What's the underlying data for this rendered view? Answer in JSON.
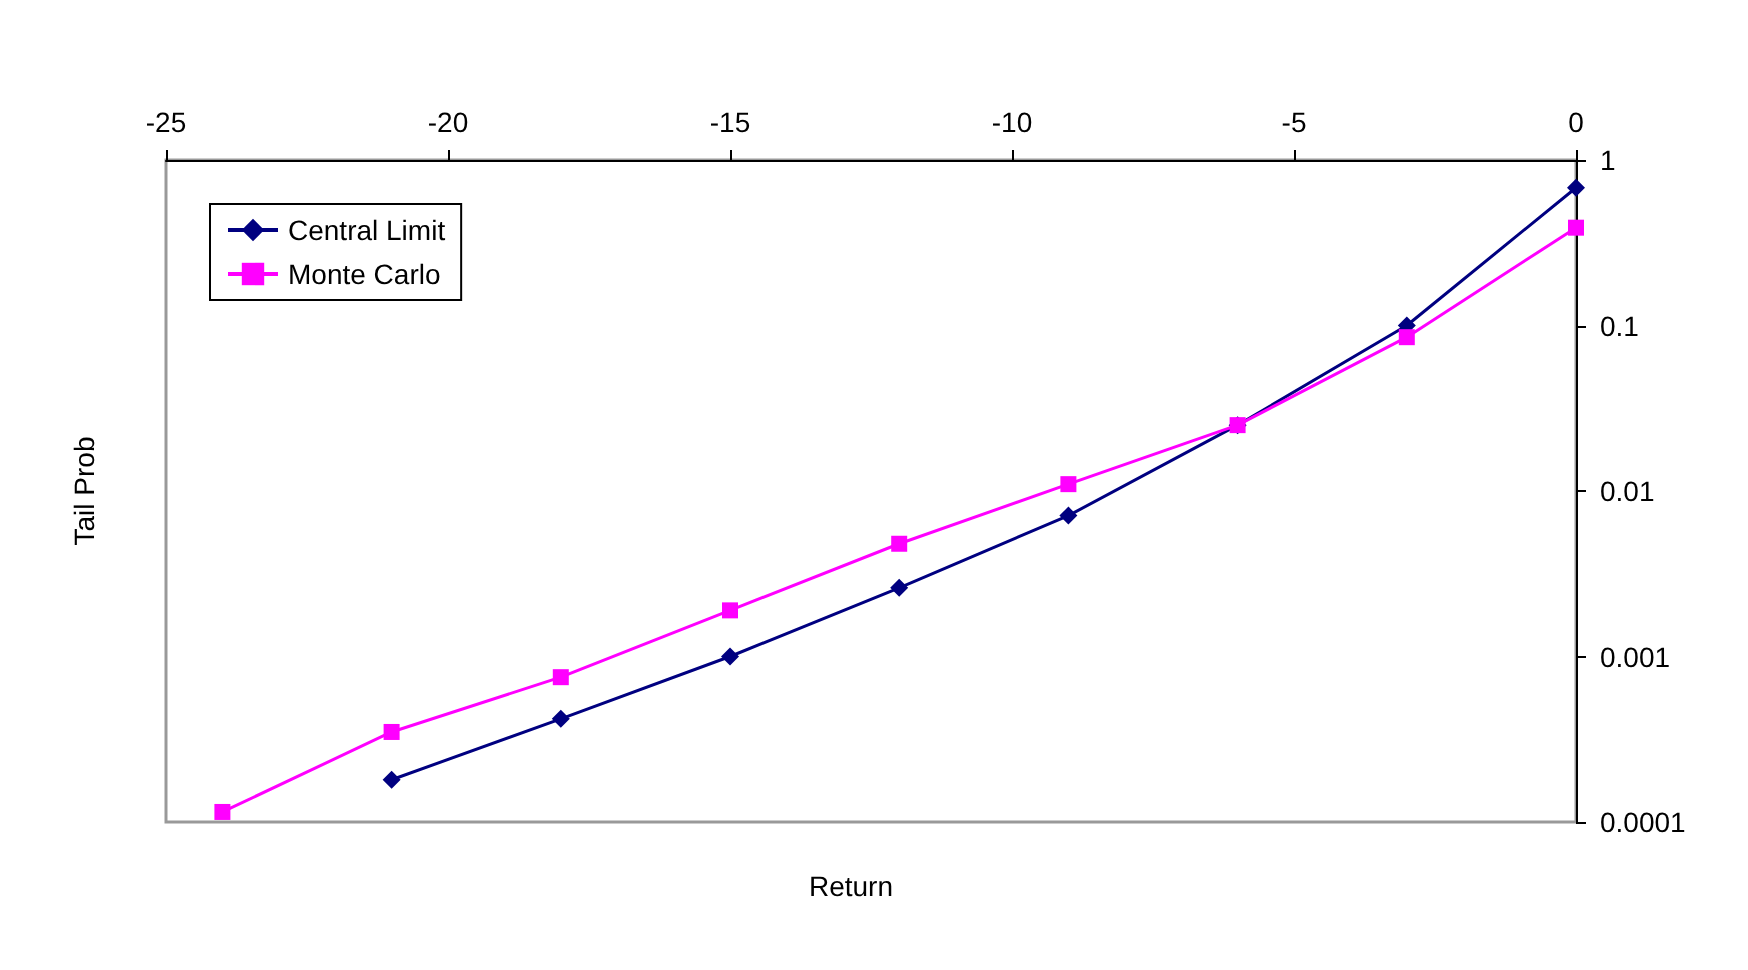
{
  "chart_data": {
    "type": "line",
    "xlabel": "Return",
    "ylabel": "Tail Prob",
    "series": [
      {
        "name": "Central Limit",
        "color": "#000080",
        "marker": "diamond",
        "x": [
          -21,
          -18,
          -15,
          -12,
          -9,
          -6,
          -3,
          0
        ],
        "values": [
          0.00018,
          0.00042,
          0.001,
          0.0026,
          0.0071,
          0.025,
          0.1,
          0.68
        ]
      },
      {
        "name": "Monte Carlo",
        "color": "#ff00ff",
        "marker": "square",
        "x": [
          -24,
          -21,
          -18,
          -15,
          -12,
          -9,
          -6,
          -3,
          0
        ],
        "values": [
          0.000115,
          0.00035,
          0.00075,
          0.0019,
          0.0048,
          0.011,
          0.025,
          0.085,
          0.39
        ]
      }
    ],
    "xlim": [
      -25,
      0
    ],
    "xticks": [
      -25,
      -20,
      -15,
      -10,
      -5,
      0
    ],
    "ylim": [
      0.0001,
      1
    ],
    "yticks": [
      0.0001,
      0.001,
      0.01,
      0.1,
      1
    ],
    "log": "y",
    "grid": false,
    "legend": "top left"
  }
}
